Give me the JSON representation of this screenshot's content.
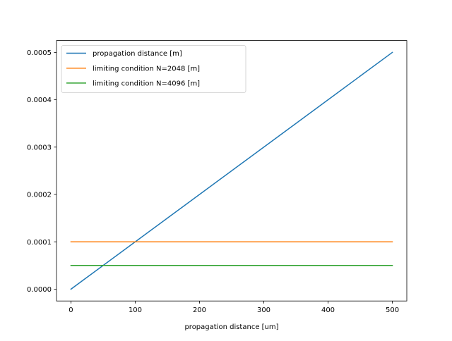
{
  "chart_data": {
    "type": "line",
    "title": "",
    "xlabel": "propagation distance [um]",
    "ylabel": "",
    "xlim": [
      -22.5,
      522.5
    ],
    "ylim": [
      -2.5e-05,
      0.000525
    ],
    "x_ticks": [
      0,
      100,
      200,
      300,
      400,
      500
    ],
    "x_tick_labels": [
      "0",
      "100",
      "200",
      "300",
      "400",
      "500"
    ],
    "y_ticks": [
      0,
      0.0001,
      0.0002,
      0.0003,
      0.0004,
      0.0005
    ],
    "y_tick_labels": [
      "0.0000",
      "0.0001",
      "0.0002",
      "0.0003",
      "0.0004",
      "0.0005"
    ],
    "grid": false,
    "legend_position": "upper-left",
    "series": [
      {
        "name": "propagation distance [m]",
        "color": "#1f77b4",
        "x": [
          0,
          500
        ],
        "y": [
          0,
          0.0005
        ]
      },
      {
        "name": "limiting condition N=2048 [m]",
        "color": "#ff7f0e",
        "x": [
          0,
          500
        ],
        "y": [
          0.0001,
          0.0001
        ]
      },
      {
        "name": "limiting condition N=4096 [m]",
        "color": "#2ca02c",
        "x": [
          0,
          500
        ],
        "y": [
          5e-05,
          5e-05
        ]
      }
    ]
  }
}
